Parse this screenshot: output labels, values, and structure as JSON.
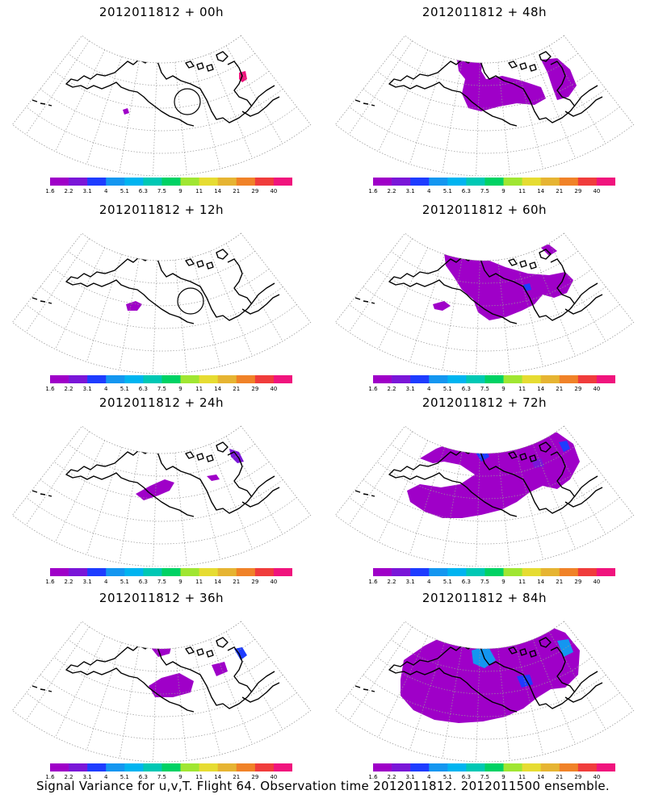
{
  "panels": [
    {
      "title": "2012011812 + 00h",
      "lead": "00h"
    },
    {
      "title": "2012011812 + 48h",
      "lead": "48h"
    },
    {
      "title": "2012011812 + 12h",
      "lead": "12h"
    },
    {
      "title": "2012011812 + 60h",
      "lead": "60h"
    },
    {
      "title": "2012011812 + 24h",
      "lead": "24h"
    },
    {
      "title": "2012011812 + 72h",
      "lead": "72h"
    },
    {
      "title": "2012011812 + 36h",
      "lead": "36h"
    },
    {
      "title": "2012011812 + 84h",
      "lead": "84h"
    }
  ],
  "colorbar": {
    "labels": [
      "1.6",
      "2.2",
      "3.1",
      "4",
      "5.1",
      "6.3",
      "7.5",
      "9",
      "11",
      "14",
      "21",
      "29",
      "40"
    ],
    "colors": [
      "#9f00c8",
      "#7a16d8",
      "#1e3cff",
      "#1496f0",
      "#00b4f0",
      "#00c8b4",
      "#00d264",
      "#a0e632",
      "#e6dc32",
      "#e6b432",
      "#f08228",
      "#f03c3c",
      "#f0147d"
    ]
  },
  "footer": "Signal Variance for u,v,T. Flight 64. Observation time 2012011812. 2012011500 ensemble."
}
